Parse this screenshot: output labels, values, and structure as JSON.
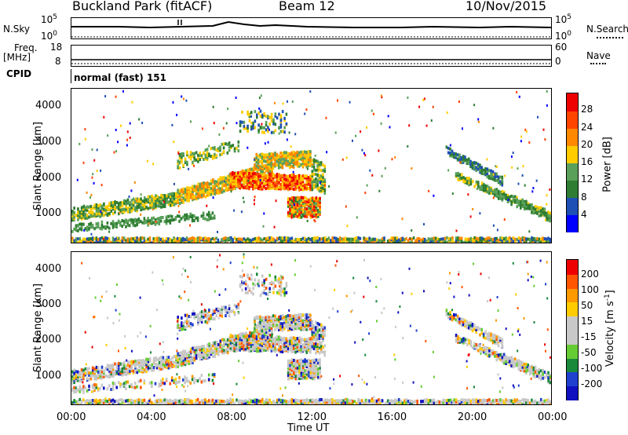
{
  "header": {
    "title": "Buckland Park (fitACF)",
    "beam": "Beam 12",
    "date": "10/Nov/2015"
  },
  "strips": {
    "nsky_label": "N.Sky",
    "nsky_top_tick": "10^5",
    "nsky_bottom_tick": "10^0",
    "nsearch_label": "N.Search",
    "freq_label": "Freq.",
    "freq_unit": "[MHz]",
    "freq_ticks": [
      "18",
      "8"
    ],
    "nave_label": "Nave",
    "nave_ticks": [
      "60",
      "0"
    ],
    "cpid_label": "CPID",
    "cpid_value": "normal (fast) 151"
  },
  "colors": {
    "power_scale": [
      "#0000ff",
      "#1e4fb4",
      "#2e7d32",
      "#5aa05a",
      "#ffcc00",
      "#ff8800",
      "#ff4400",
      "#ee0000"
    ],
    "velocity_scale": [
      "#1010c0",
      "#2040d0",
      "#1a8a3a",
      "#66cc33",
      "#c8c8c8",
      "#c8c8c8",
      "#ffcc00",
      "#ff9900",
      "#ff5500",
      "#ee0000"
    ]
  },
  "chart_data": [
    {
      "type": "heatmap",
      "title": "",
      "xlabel": "Time UT",
      "ylabel": "Slant Range [km]",
      "x_ticks": [
        "00:00",
        "04:00",
        "08:00",
        "12:00",
        "16:00",
        "20:00",
        "00:00"
      ],
      "y_ticks": [
        "1000",
        "2000",
        "3000",
        "4000"
      ],
      "ylim": [
        180,
        4500
      ],
      "colorbar": {
        "label": "Power [dB]",
        "ticks": [
          "28",
          "24",
          "20",
          "16",
          "12",
          "8",
          "4"
        ]
      }
    },
    {
      "type": "heatmap",
      "title": "",
      "xlabel": "Time UT",
      "ylabel": "Slant Range [km]",
      "x_ticks": [
        "00:00",
        "04:00",
        "08:00",
        "12:00",
        "16:00",
        "20:00",
        "00:00"
      ],
      "y_ticks": [
        "1000",
        "2000",
        "3000",
        "4000"
      ],
      "ylim": [
        180,
        4500
      ],
      "colorbar": {
        "label": "Velocity [m s-1]",
        "ticks": [
          "200",
          "100",
          "50",
          "15",
          "-15",
          "-50",
          "-100",
          "-200"
        ]
      }
    }
  ]
}
